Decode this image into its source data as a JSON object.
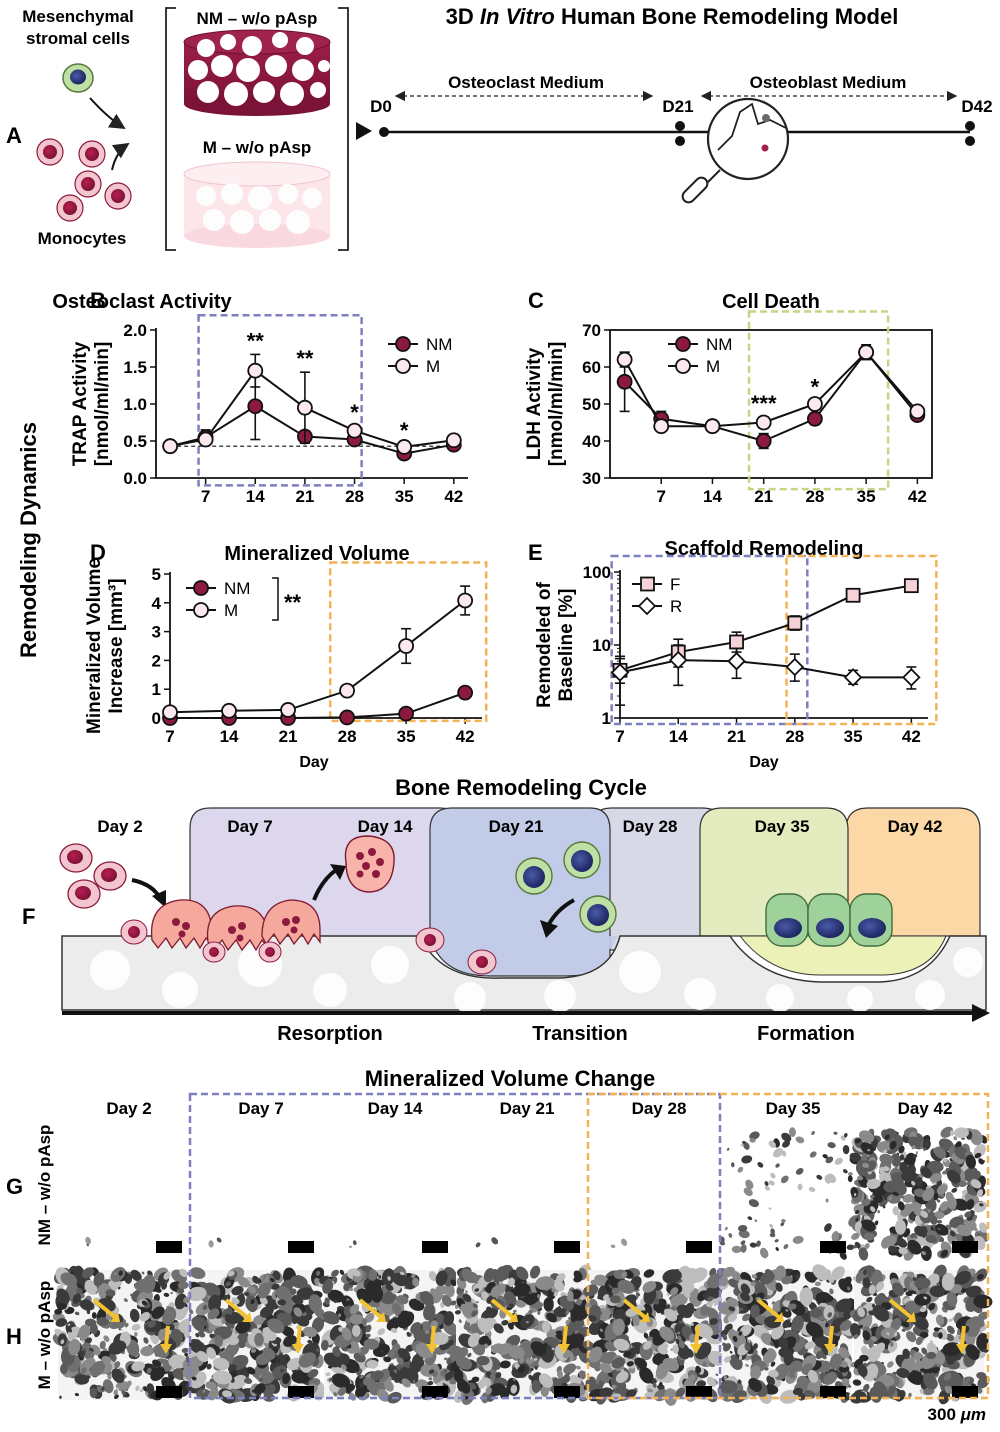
{
  "panelA": {
    "letter": "A",
    "msc_label": "Mesenchymal",
    "msc_label2": "stromal cells",
    "mono_label": "Monocytes",
    "nm_label": "NM – w/o pAsp",
    "m_label": "M – w/o pAsp",
    "title_pre": "3D ",
    "title_italic": "In Vitro",
    "title_post": " Human Bone Remodeling Model",
    "oc_medium": "Osteoclast Medium",
    "ob_medium": "Osteoblast Medium",
    "d0": "D0",
    "d21": "D21",
    "d42": "D42"
  },
  "side_label": "Remodeling Dynamics",
  "xlabel_day": "Day",
  "colors": {
    "nm": "#8b1a3e",
    "m": "#fbe9ee",
    "blue_box": "#7d7fbf",
    "green_box": "#c7d483",
    "orange_box": "#f2b256"
  },
  "chart_data": [
    {
      "panel": "B",
      "type": "line",
      "title": "Osteoclast Activity",
      "ylabel": "TRAP Activity",
      "ylabel2": "[nmol/ml/min]",
      "ylim": [
        0,
        2.0
      ],
      "yticks": [
        "0.0",
        "0.5",
        "1.0",
        "1.5",
        "2.0"
      ],
      "x": [
        2,
        7,
        14,
        21,
        28,
        35,
        42
      ],
      "xticks": [
        "7",
        "14",
        "21",
        "28",
        "35",
        "42"
      ],
      "baseline": 0.43,
      "series": [
        {
          "name": "NM",
          "values": [
            0.43,
            0.55,
            0.97,
            0.56,
            0.52,
            0.33,
            0.45
          ],
          "err": [
            0.03,
            0.1,
            0.45,
            0.05,
            0.05,
            0.04,
            0.04
          ]
        },
        {
          "name": "M",
          "values": [
            0.43,
            0.52,
            1.45,
            0.95,
            0.64,
            0.42,
            0.51
          ],
          "err": [
            0.03,
            0.06,
            0.22,
            0.48,
            0.06,
            0.04,
            0.04
          ]
        }
      ],
      "annotations": [
        {
          "x": 14,
          "text": "**"
        },
        {
          "x": 21,
          "text": "**"
        },
        {
          "x": 28,
          "text": "*"
        },
        {
          "x": 35,
          "text": "*"
        }
      ],
      "legend": [
        "NM",
        "M"
      ]
    },
    {
      "panel": "C",
      "type": "line",
      "title": "Cell Death",
      "ylabel": "LDH Activity",
      "ylabel2": "[nmol/ml/min]",
      "ylim": [
        30,
        70
      ],
      "yticks": [
        "30",
        "40",
        "50",
        "60",
        "70"
      ],
      "x": [
        2,
        7,
        14,
        21,
        28,
        35,
        42
      ],
      "xticks": [
        "7",
        "14",
        "21",
        "28",
        "35",
        "42"
      ],
      "series": [
        {
          "name": "NM",
          "values": [
            56,
            46,
            44,
            40,
            46,
            64,
            47
          ],
          "err": [
            8,
            2,
            1.5,
            2,
            1.5,
            2,
            1
          ]
        },
        {
          "name": "M",
          "values": [
            62,
            44,
            44,
            45,
            50,
            64,
            48
          ],
          "err": [
            2,
            1,
            1,
            1.5,
            1,
            1.5,
            1
          ]
        }
      ],
      "annotations": [
        {
          "x": 21,
          "text": "***"
        },
        {
          "x": 28,
          "text": "*"
        }
      ],
      "legend": [
        "NM",
        "M"
      ]
    },
    {
      "panel": "D",
      "type": "line",
      "title": "Mineralized Volume",
      "ylabel": "Mineralized Volume",
      "ylabel2": "Increase [mm³]",
      "ylim": [
        0,
        5
      ],
      "yticks": [
        "0",
        "1",
        "2",
        "3",
        "4",
        "5"
      ],
      "x": [
        7,
        14,
        21,
        28,
        35,
        42
      ],
      "xticks": [
        "7",
        "14",
        "21",
        "28",
        "35",
        "42"
      ],
      "series": [
        {
          "name": "NM",
          "values": [
            0.0,
            0.0,
            0.0,
            0.02,
            0.15,
            0.88
          ],
          "err": [
            0,
            0,
            0,
            0.02,
            0.05,
            0.12
          ]
        },
        {
          "name": "M",
          "values": [
            0.2,
            0.25,
            0.28,
            0.95,
            2.5,
            4.08
          ],
          "err": [
            0.03,
            0.04,
            0.05,
            0.12,
            0.6,
            0.5
          ]
        }
      ],
      "annotations": [
        {
          "text": "**"
        }
      ],
      "legend": [
        "NM",
        "M"
      ]
    },
    {
      "panel": "E",
      "type": "line",
      "title": "Scaffold Remodeling",
      "ylabel": "Remodeled of",
      "ylabel2": "Baseline [%]",
      "yscale": "log",
      "ylim": [
        1,
        100
      ],
      "yticks": [
        "1",
        "10",
        "100"
      ],
      "x": [
        7,
        14,
        21,
        28,
        35,
        42
      ],
      "xticks": [
        "7",
        "14",
        "21",
        "28",
        "35",
        "42"
      ],
      "series": [
        {
          "name": "F",
          "values": [
            4.5,
            8,
            11,
            20,
            48,
            65
          ],
          "lo": [
            3,
            5,
            8,
            16,
            40,
            58
          ],
          "hi": [
            6.5,
            12,
            15,
            25,
            56,
            72
          ]
        },
        {
          "name": "R",
          "values": [
            4.2,
            6.2,
            6,
            5,
            3.6,
            3.6
          ],
          "lo": [
            1.5,
            2.8,
            3.5,
            3.2,
            2.9,
            2.5
          ],
          "hi": [
            7,
            10,
            9,
            7.5,
            4.5,
            5
          ]
        }
      ],
      "legend": [
        "F",
        "R"
      ]
    }
  ],
  "panelF": {
    "letter": "F",
    "title": "Bone Remodeling Cycle",
    "days": [
      "Day 2",
      "Day 7",
      "Day 14",
      "Day 21",
      "Day 28",
      "Day 35",
      "Day 42"
    ],
    "phases": [
      "Resorption",
      "Transition",
      "Formation"
    ]
  },
  "panelGH": {
    "title": "Mineralized Volume Change",
    "days": [
      "Day 2",
      "Day 7",
      "Day 14",
      "Day 21",
      "Day 28",
      "Day 35",
      "Day 42"
    ],
    "g_letter": "G",
    "h_letter": "H",
    "row_g_label": "NM – w/o pAsp",
    "row_h_label": "M – w/o pAsp",
    "scale_pre": "300 ",
    "scale_unit": "μm"
  }
}
